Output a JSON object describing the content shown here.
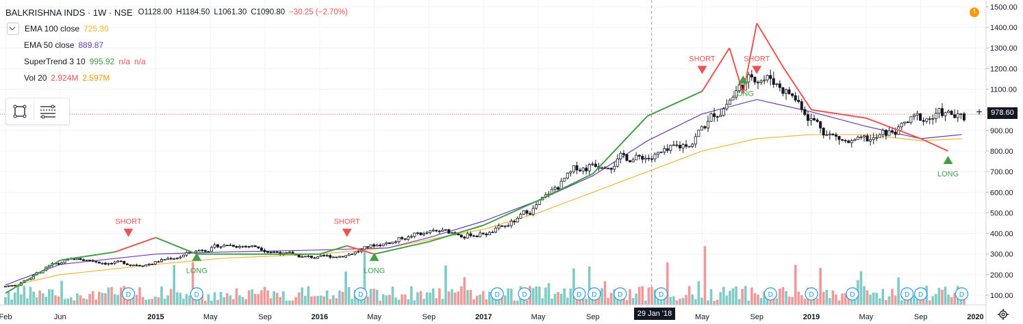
{
  "header": {
    "symbol": "BALKRISHNA INDS · 1W · NSE",
    "open": "O1128.00",
    "high": "H1184.50",
    "low": "L1061.30",
    "close": "C1090.80",
    "change": "−30.25 (−2.70%)"
  },
  "indicators": {
    "ema100": {
      "label": "EMA 100 close",
      "value": "725.30",
      "color": "#f5b731"
    },
    "ema50": {
      "label": "EMA 50 close",
      "value": "889.87",
      "color": "#673ab7"
    },
    "supertrend": {
      "label": "SuperTrend 3 10",
      "value": "995.92",
      "na1": "n/a",
      "na2": "n/a",
      "color_up": "#43a047",
      "color_down": "#ef5350"
    },
    "vol": {
      "label": "Vol 20",
      "value": "2.924M",
      "value2": "2.597M",
      "color": "#ef5350",
      "color2": "#ff9800"
    }
  },
  "price_axis": {
    "current_price": "978.60",
    "labels": [
      "1500.00",
      "1400.00",
      "1300.00",
      "1200.00",
      "1100.00",
      "1000.00",
      "900.00",
      "800.00",
      "700.00",
      "600.00",
      "500.00",
      "400.00",
      "300.00",
      "200.00",
      "100.00"
    ]
  },
  "time_axis": {
    "labels": [
      "Feb",
      "Jun",
      "2015",
      "May",
      "Sep",
      "2016",
      "May",
      "Sep",
      "2017",
      "May",
      "Sep",
      "May",
      "Sep",
      "2019",
      "May",
      "Sep",
      "2020"
    ],
    "crosshair_date": "29 Jan '18"
  },
  "colors": {
    "up": "#26a69a",
    "down": "#ef5350",
    "candle": "#131722",
    "vol_up": "#80cbc4",
    "vol_down": "#ef9a9a"
  },
  "signals": [
    {
      "label": "SHORT",
      "type": "short"
    },
    {
      "label": "LONG",
      "type": "long"
    },
    {
      "label": "SHORT",
      "type": "short"
    },
    {
      "label": "LONG",
      "type": "long"
    },
    {
      "label": "SHORT",
      "type": "short"
    },
    {
      "label": "LONG",
      "type": "long"
    },
    {
      "label": "SHORT",
      "type": "short"
    },
    {
      "label": "LONG",
      "type": "long"
    }
  ],
  "dividend_marker": "D",
  "chart_data": {
    "type": "candlestick",
    "title": "BALKRISHNA INDS · 1W · NSE",
    "ylim": [
      50,
      1520
    ],
    "y_ticks": [
      100,
      200,
      300,
      400,
      500,
      600,
      700,
      800,
      900,
      1000,
      1100,
      1200,
      1300,
      1400,
      1500
    ],
    "series": [
      {
        "name": "EMA 100 close",
        "points": [
          [
            "2014-02",
            140
          ],
          [
            "2014-06",
            200
          ],
          [
            "2015-01",
            250
          ],
          [
            "2015-06",
            280
          ],
          [
            "2016-01",
            300
          ],
          [
            "2016-06",
            330
          ],
          [
            "2016-09",
            370
          ],
          [
            "2017-01",
            420
          ],
          [
            "2017-05",
            500
          ],
          [
            "2017-09",
            600
          ],
          [
            "2018-01",
            700
          ],
          [
            "2018-05",
            800
          ],
          [
            "2018-09",
            860
          ],
          [
            "2019-01",
            880
          ],
          [
            "2019-05",
            880
          ],
          [
            "2019-09",
            850
          ],
          [
            "2019-12",
            860
          ]
        ]
      },
      {
        "name": "EMA 50 close",
        "points": [
          [
            "2014-02",
            150
          ],
          [
            "2014-06",
            250
          ],
          [
            "2015-01",
            300
          ],
          [
            "2015-06",
            310
          ],
          [
            "2016-01",
            320
          ],
          [
            "2016-06",
            330
          ],
          [
            "2016-09",
            380
          ],
          [
            "2017-01",
            460
          ],
          [
            "2017-05",
            560
          ],
          [
            "2017-09",
            680
          ],
          [
            "2018-01",
            850
          ],
          [
            "2018-05",
            980
          ],
          [
            "2018-09",
            1050
          ],
          [
            "2019-01",
            990
          ],
          [
            "2019-05",
            920
          ],
          [
            "2019-09",
            860
          ],
          [
            "2019-12",
            880
          ]
        ]
      },
      {
        "name": "SuperTrend 3 10",
        "points": [
          [
            "2014-02",
            110
          ],
          [
            "2014-06",
            270
          ],
          [
            "2014-10",
            310
          ],
          [
            "2015-01",
            380
          ],
          [
            "2015-04",
            300
          ],
          [
            "2016-01",
            300
          ],
          [
            "2016-03",
            340
          ],
          [
            "2016-05",
            300
          ],
          [
            "2016-09",
            360
          ],
          [
            "2017-01",
            440
          ],
          [
            "2017-05",
            560
          ],
          [
            "2017-09",
            690
          ],
          [
            "2018-01",
            970
          ],
          [
            "2018-05",
            1090
          ],
          [
            "2018-07",
            1300
          ],
          [
            "2018-08",
            1080
          ],
          [
            "2018-09",
            1420
          ],
          [
            "2018-11",
            1200
          ],
          [
            "2019-01",
            1000
          ],
          [
            "2019-05",
            960
          ],
          [
            "2019-09",
            860
          ],
          [
            "2019-11",
            800
          ]
        ]
      }
    ],
    "dividend_markers": [
      "2014-11",
      "2015-04",
      "2016-04",
      "2017-02",
      "2017-04",
      "2017-08",
      "2017-08",
      "2017-11",
      "2018-02",
      "2018-10",
      "2019-01",
      "2019-04",
      "2019-08",
      "2019-09",
      "2019-12"
    ]
  }
}
